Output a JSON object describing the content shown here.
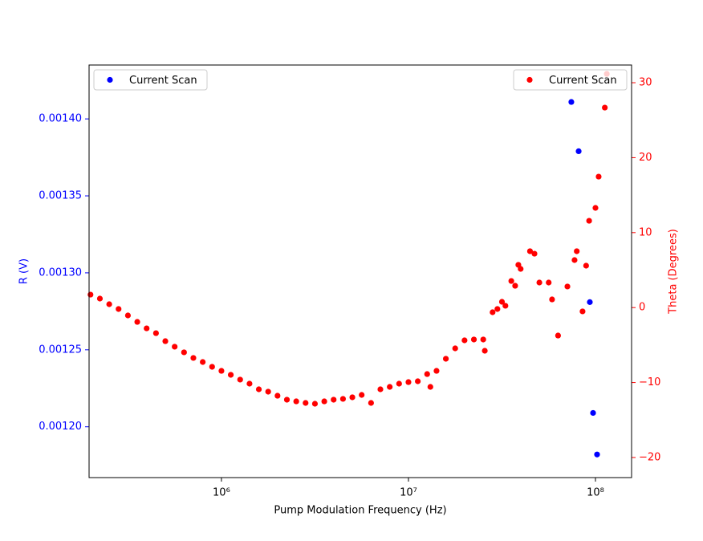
{
  "chart_data": {
    "type": "scatter",
    "xlabel": "Pump Modulation Frequency (Hz)",
    "ylabel": "R (V)",
    "y2label": "Theta (Degrees)",
    "xscale": "log",
    "xlim": [
      196000,
      156000000
    ],
    "xticks": [
      {
        "value": 1000000,
        "label": "10⁶"
      },
      {
        "value": 10000000,
        "label": "10⁷"
      },
      {
        "value": 100000000,
        "label": "10⁸"
      }
    ],
    "ylim": [
      0.001167,
      0.001435
    ],
    "yticks": [
      {
        "value": 0.0012,
        "label": "0.00120"
      },
      {
        "value": 0.00125,
        "label": "0.00125"
      },
      {
        "value": 0.0013,
        "label": "0.00130"
      },
      {
        "value": 0.00135,
        "label": "0.00135"
      },
      {
        "value": 0.0014,
        "label": "0.00140"
      }
    ],
    "y2lim": [
      -22.68,
      32.36
    ],
    "y2ticks": [
      {
        "value": -20,
        "label": "−20"
      },
      {
        "value": -10,
        "label": "−10"
      },
      0,
      10,
      20,
      30
    ],
    "ycolor": "blue",
    "y2color": "red",
    "series": [
      {
        "name": "Current Scan",
        "color": "blue",
        "axis": "y",
        "legend": "upper left",
        "x": [
          74300000,
          81300000,
          93300000,
          97100000,
          102000000
        ],
        "values": [
          0.001411,
          0.001379,
          0.001281,
          0.001209,
          0.001182
        ]
      },
      {
        "name": "Current Scan",
        "color": "red",
        "axis": "y2",
        "legend": "upper right",
        "x": [
          199500,
          223900,
          251200,
          281800,
          316200,
          354800,
          398100,
          446700,
          501200,
          562300,
          631000,
          707900,
          794300,
          891300,
          1000000,
          1122000,
          1259000,
          1413000,
          1585000,
          1778000,
          1995000,
          2239000,
          2512000,
          2818000,
          3162000,
          3548000,
          3981000,
          4467000,
          5012000,
          5623000,
          6310000,
          7079000,
          7943000,
          8913000,
          10000000,
          11220000,
          12590000,
          13100000,
          14130000,
          15850000,
          17780000,
          19950000,
          22390000,
          25120000,
          25600000,
          28180000,
          29900000,
          31620000,
          33000000,
          35480000,
          37200000,
          38700000,
          39810000,
          44670000,
          47200000,
          50120000,
          56230000,
          58600000,
          63100000,
          70790000,
          77300000,
          79430000,
          85300000,
          89130000,
          92500000,
          100000000,
          104000000,
          112200000,
          115000000
        ],
        "values": [
          1.73,
          1.2,
          0.45,
          -0.19,
          -1.05,
          -1.91,
          -2.77,
          -3.41,
          -4.48,
          -5.22,
          -5.97,
          -6.72,
          -7.26,
          -7.9,
          -8.44,
          -8.97,
          -9.61,
          -10.15,
          -10.9,
          -11.22,
          -11.76,
          -12.29,
          -12.51,
          -12.72,
          -12.83,
          -12.51,
          -12.29,
          -12.18,
          -11.97,
          -11.65,
          -12.72,
          -10.9,
          -10.58,
          -10.15,
          -9.94,
          -9.83,
          -8.87,
          -10.58,
          -8.44,
          -6.83,
          -5.44,
          -4.37,
          -4.26,
          -4.26,
          -5.76,
          -0.62,
          -0.19,
          0.77,
          0.24,
          3.55,
          2.91,
          5.7,
          5.16,
          7.52,
          7.19,
          3.34,
          3.34,
          1.09,
          -3.73,
          2.81,
          6.34,
          7.52,
          -0.51,
          5.59,
          11.58,
          13.3,
          17.47,
          26.68,
          31.18
        ]
      }
    ]
  }
}
